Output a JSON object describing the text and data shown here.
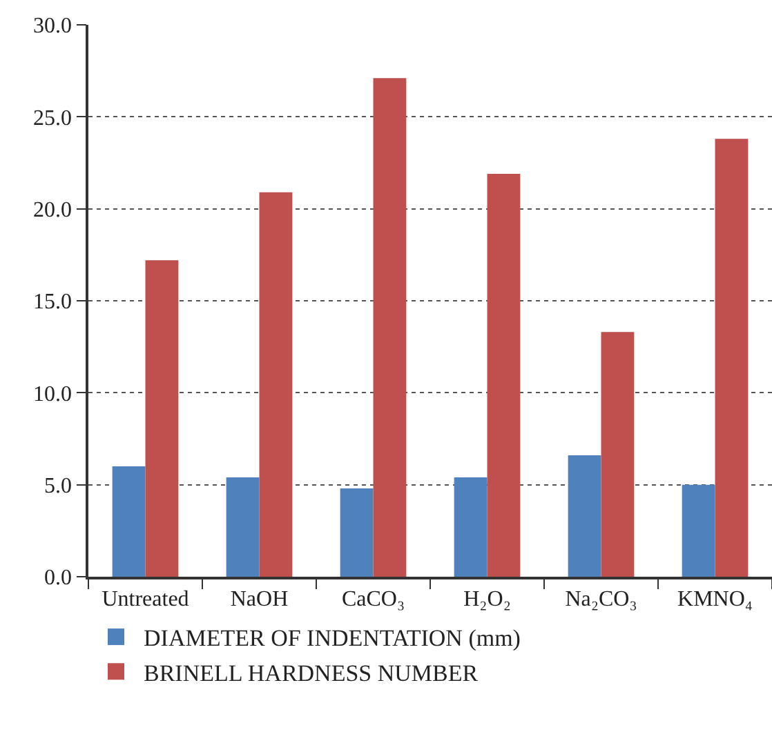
{
  "chart_data": {
    "type": "bar",
    "categories": [
      "Untreated",
      "NaOH",
      "CaCO₃",
      "H₂O₂",
      "Na₂CO₃",
      "KMNO₄"
    ],
    "series": [
      {
        "name": "DIAMETER OF INDENTATION (mm)",
        "color": "#4f81bd",
        "values": [
          6.0,
          5.4,
          4.8,
          5.4,
          6.6,
          5.0
        ]
      },
      {
        "name": "BRINELL HARDNESS NUMBER",
        "color": "#c0504d",
        "values": [
          17.2,
          20.9,
          27.1,
          21.9,
          13.3,
          23.8
        ]
      }
    ],
    "ylim": [
      0,
      30
    ],
    "yticks": [
      {
        "value": 0,
        "label": "0.0"
      },
      {
        "value": 5,
        "label": "5.0"
      },
      {
        "value": 10,
        "label": "10.0"
      },
      {
        "value": 15,
        "label": "15.0"
      },
      {
        "value": 20,
        "label": "20.0"
      },
      {
        "value": 25,
        "label": "25.0"
      },
      {
        "value": 30,
        "label": "30.0"
      }
    ],
    "grid": "y",
    "legend": "bottom left"
  }
}
